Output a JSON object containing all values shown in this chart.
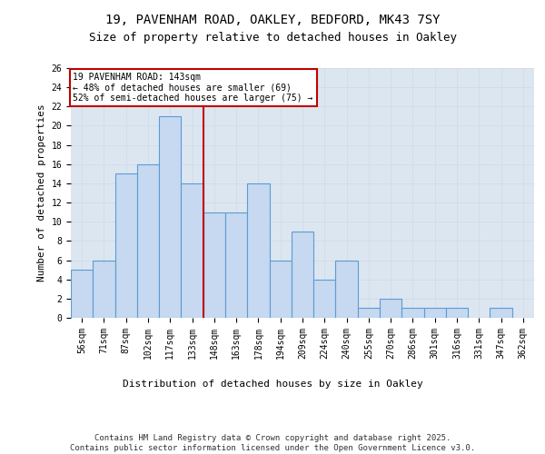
{
  "title_line1": "19, PAVENHAM ROAD, OAKLEY, BEDFORD, MK43 7SY",
  "title_line2": "Size of property relative to detached houses in Oakley",
  "xlabel": "Distribution of detached houses by size in Oakley",
  "ylabel": "Number of detached properties",
  "bar_labels": [
    "56sqm",
    "71sqm",
    "87sqm",
    "102sqm",
    "117sqm",
    "133sqm",
    "148sqm",
    "163sqm",
    "178sqm",
    "194sqm",
    "209sqm",
    "224sqm",
    "240sqm",
    "255sqm",
    "270sqm",
    "286sqm",
    "301sqm",
    "316sqm",
    "331sqm",
    "347sqm",
    "362sqm"
  ],
  "bar_values": [
    5,
    6,
    15,
    16,
    21,
    14,
    11,
    11,
    14,
    6,
    9,
    4,
    6,
    1,
    2,
    1,
    1,
    1,
    0,
    1,
    0
  ],
  "bar_color": "#c6d9f0",
  "bar_edge_color": "#5b9bd5",
  "vline_x": 5.5,
  "vline_color": "#c00000",
  "annotation_text": "19 PAVENHAM ROAD: 143sqm\n← 48% of detached houses are smaller (69)\n52% of semi-detached houses are larger (75) →",
  "annotation_box_color": "#ffffff",
  "annotation_box_edge": "#c00000",
  "ylim": [
    0,
    26
  ],
  "yticks": [
    0,
    2,
    4,
    6,
    8,
    10,
    12,
    14,
    16,
    18,
    20,
    22,
    24,
    26
  ],
  "grid_color": "#d0dce8",
  "bg_color": "#dce6f1",
  "footer": "Contains HM Land Registry data © Crown copyright and database right 2025.\nContains public sector information licensed under the Open Government Licence v3.0.",
  "title_fontsize": 10,
  "subtitle_fontsize": 9,
  "axis_label_fontsize": 8,
  "tick_fontsize": 7,
  "footer_fontsize": 6.5,
  "annotation_fontsize": 7
}
